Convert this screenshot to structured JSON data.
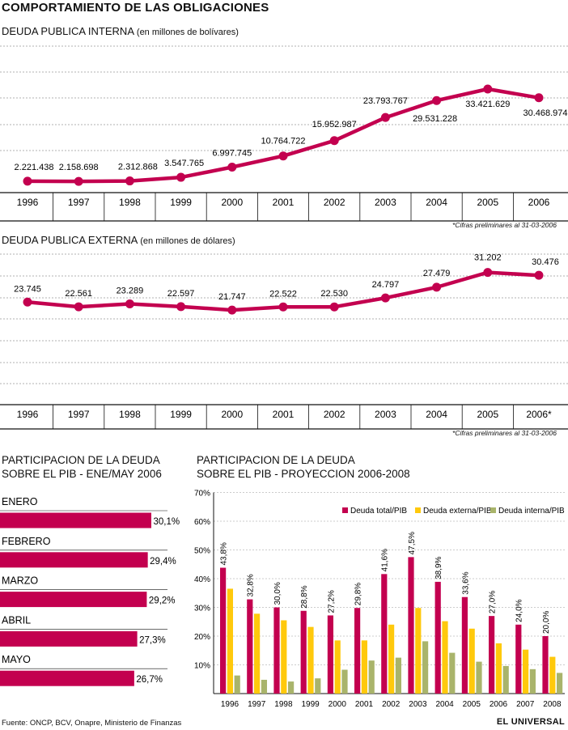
{
  "header": {
    "title": "COMPORTAMIENTO DE LAS OBLIGACIONES"
  },
  "colors": {
    "accent": "#c3004f",
    "yellow": "#ffc90c",
    "olive": "#a9b46b",
    "grid": "#999999"
  },
  "footer": {
    "source": "Fuente: ONCP, BCV, Onapre, Ministerio de Finanzas",
    "brand": "EL UNIVERSAL"
  },
  "chart_data": [
    {
      "type": "line",
      "title": "DEUDA PUBLICA INTERNA",
      "unit_note": "(en millones de bolívares)",
      "footnote": "*Cifras preliminares al 31-03-2006",
      "categories": [
        "1996",
        "1997",
        "1998",
        "1999",
        "2000",
        "2001",
        "2002",
        "2003",
        "2004",
        "2005",
        "2006"
      ],
      "values": [
        2221438,
        2158698,
        2312868,
        3547765,
        6997745,
        10764722,
        15952987,
        23793767,
        29531228,
        33421629,
        30468974
      ],
      "labels": [
        "2.221.438",
        "2.158.698",
        "2.312.868",
        "3.547.765",
        "6.997.745",
        "10.764.722",
        "15.952.987",
        "23.793.767",
        "29.531.228",
        "33.421.629",
        "30.468.974"
      ],
      "ylim": [
        0,
        40000000
      ]
    },
    {
      "type": "line",
      "title": "DEUDA PUBLICA EXTERNA",
      "unit_note": "(en millones de dólares)",
      "footnote": "*Cifras preliminares al 31-03-2006",
      "categories": [
        "1996",
        "1997",
        "1998",
        "1999",
        "2000",
        "2001",
        "2002",
        "2003",
        "2004",
        "2005",
        "2006*"
      ],
      "values": [
        23745,
        22561,
        23289,
        22597,
        21747,
        22522,
        22530,
        24797,
        27479,
        31202,
        30476
      ],
      "labels": [
        "23.745",
        "22.561",
        "23.289",
        "22.597",
        "21.747",
        "22.522",
        "22.530",
        "24.797",
        "27.479",
        "31.202",
        "30.476"
      ],
      "ylim": [
        0,
        36000
      ]
    },
    {
      "type": "bar",
      "orientation": "horizontal",
      "title_line1": "PARTICIPACION DE LA DEUDA",
      "title_line2": "SOBRE EL PIB - ENE/MAY 2006",
      "categories": [
        "ENERO",
        "FEBRERO",
        "MARZO",
        "ABRIL",
        "MAYO"
      ],
      "values": [
        30.1,
        29.4,
        29.2,
        27.3,
        26.7
      ],
      "labels": [
        "30,1%",
        "29,4%",
        "29,2%",
        "27,3%",
        "26,7%"
      ]
    },
    {
      "type": "bar",
      "title_line1": "PARTICIPACION DE LA DEUDA",
      "title_line2": "SOBRE EL PIB - PROYECCION 2006-2008",
      "categories": [
        "1996",
        "1997",
        "1998",
        "1999",
        "2000",
        "2001",
        "2002",
        "2003",
        "2004",
        "2005",
        "2006",
        "2007",
        "2008"
      ],
      "ylim": [
        0,
        70
      ],
      "ytick_labels": [
        "70%",
        "60%",
        "50%",
        "40%",
        "30%",
        "20%",
        "10%"
      ],
      "series": [
        {
          "name": "Deuda total/PIB",
          "values": [
            43.8,
            32.8,
            30.0,
            28.8,
            27.2,
            29.8,
            41.6,
            47.5,
            38.9,
            33.6,
            27.0,
            24.0,
            20.0
          ],
          "labels": [
            "43,8%",
            "32,8%",
            "30,0%",
            "28,8%",
            "27,2%",
            "29,8%",
            "41,6%",
            "47,5%",
            "38,9%",
            "33,6%",
            "27,0%",
            "24,0%",
            "20,0%"
          ]
        },
        {
          "name": "Deuda externa/PIB",
          "values": [
            36.5,
            27.8,
            25.5,
            23.2,
            18.5,
            18.5,
            24.0,
            29.8,
            25.2,
            22.6,
            17.5,
            15.3,
            12.8
          ]
        },
        {
          "name": "Deuda interna/PIB",
          "values": [
            6.3,
            4.8,
            4.2,
            5.3,
            8.3,
            11.5,
            12.5,
            18.2,
            14.2,
            11.1,
            9.6,
            8.5,
            7.2
          ]
        }
      ]
    }
  ]
}
